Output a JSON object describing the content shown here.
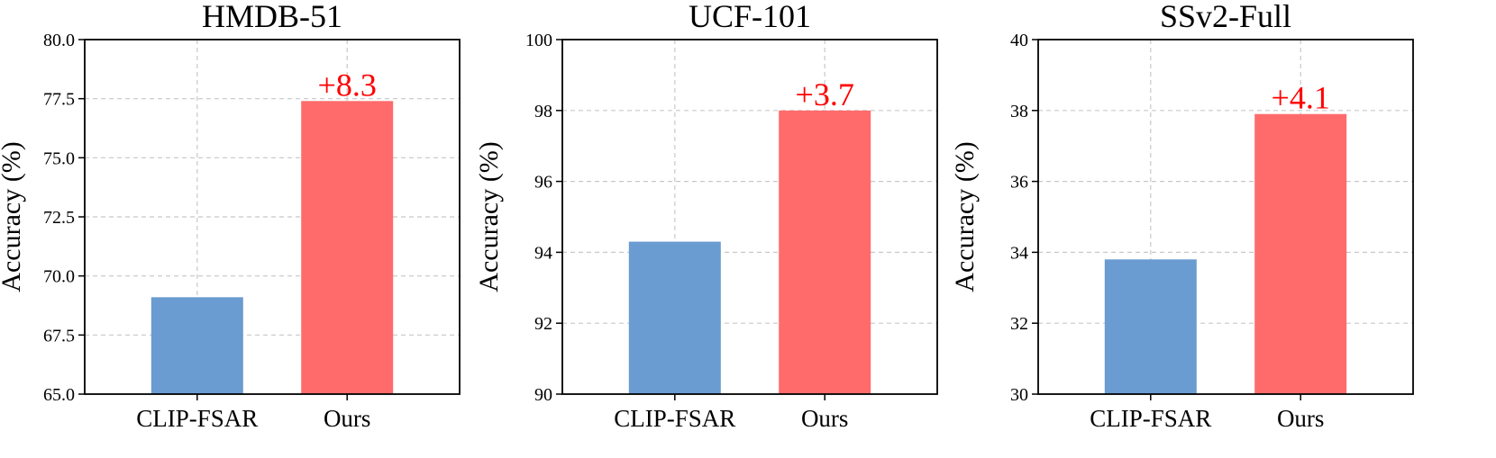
{
  "chart_data": [
    {
      "type": "bar",
      "title": "HMDB-51",
      "ylabel": "Accuracy (%)",
      "categories": [
        "CLIP-FSAR",
        "Ours"
      ],
      "values": [
        69.1,
        77.4
      ],
      "ylim": [
        65.0,
        80.0
      ],
      "yticks": [
        "65.0",
        "67.5",
        "70.0",
        "72.5",
        "75.0",
        "77.5",
        "80.0"
      ],
      "colors": [
        "#6a9bd1",
        "#ff6b6b"
      ],
      "annotation": {
        "text": "+8.3",
        "category": "Ours",
        "color": "#ff0000"
      },
      "grid": true
    },
    {
      "type": "bar",
      "title": "UCF-101",
      "ylabel": "Accuracy (%)",
      "categories": [
        "CLIP-FSAR",
        "Ours"
      ],
      "values": [
        94.3,
        98.0
      ],
      "ylim": [
        90,
        100
      ],
      "yticks": [
        "90",
        "92",
        "94",
        "96",
        "98",
        "100"
      ],
      "colors": [
        "#6a9bd1",
        "#ff6b6b"
      ],
      "annotation": {
        "text": "+3.7",
        "category": "Ours",
        "color": "#ff0000"
      },
      "grid": true
    },
    {
      "type": "bar",
      "title": "SSv2-Full",
      "ylabel": "Accuracy (%)",
      "categories": [
        "CLIP-FSAR",
        "Ours"
      ],
      "values": [
        33.8,
        37.9
      ],
      "ylim": [
        30,
        40
      ],
      "yticks": [
        "30",
        "32",
        "34",
        "36",
        "38",
        "40"
      ],
      "colors": [
        "#6a9bd1",
        "#ff6b6b"
      ],
      "annotation": {
        "text": "+4.1",
        "category": "Ours",
        "color": "#ff0000"
      },
      "grid": true
    }
  ]
}
